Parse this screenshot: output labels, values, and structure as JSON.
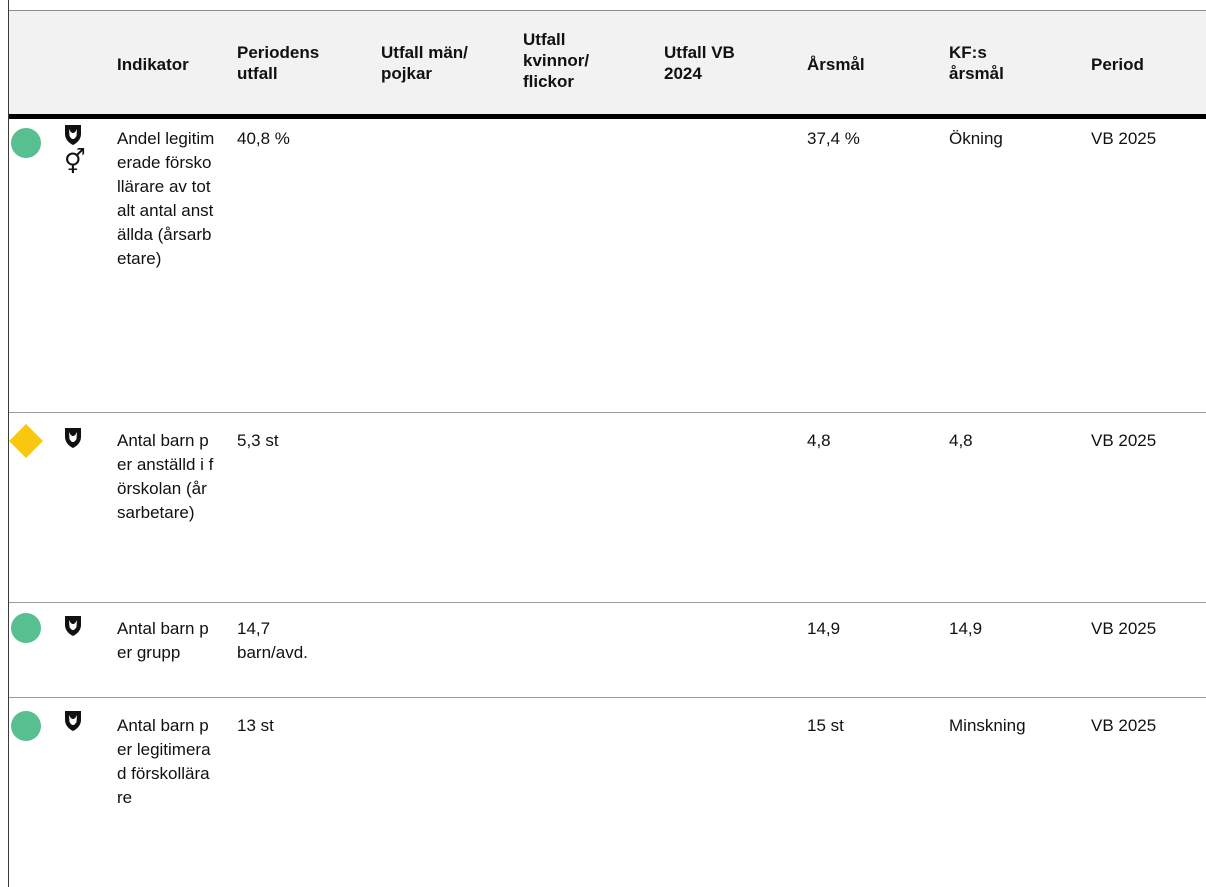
{
  "headers": {
    "indikator": "Indikator",
    "periodens_utfall": "Periodens utfall",
    "utfall_man": "Utfall män/ pojkar",
    "utfall_kvinnor": "Utfall kvinnor/ flickor",
    "utfall_vb": "Utfall VB 2024",
    "arsmal": "Årsmål",
    "kf_arsmal": "KF:s årsmål",
    "period": "Period"
  },
  "rows": [
    {
      "status": "green-circle",
      "status_color": "#58bf91",
      "icons": [
        "shield-icon",
        "gender-icon"
      ],
      "gender_symbol": "⚥",
      "indikator": "Andel legitimerade förskollärare av totalt antal anställda (årsarbetare)",
      "periodens_utfall": "40,8 %",
      "utfall_man": "",
      "utfall_kvinnor": "",
      "utfall_vb": "",
      "arsmal": "37,4 %",
      "kf_arsmal": "Ökning",
      "period": "VB 2025"
    },
    {
      "status": "yellow-diamond",
      "status_color": "#f9c80e",
      "icons": [
        "shield-icon"
      ],
      "indikator": "Antal barn per anställd i förskolan (årsarbetare)",
      "periodens_utfall": "5,3 st",
      "utfall_man": "",
      "utfall_kvinnor": "",
      "utfall_vb": "",
      "arsmal": "4,8",
      "kf_arsmal": "4,8",
      "period": "VB 2025"
    },
    {
      "status": "green-circle",
      "status_color": "#58bf91",
      "icons": [
        "shield-icon"
      ],
      "indikator": "Antal barn per grupp",
      "periodens_utfall": "14,7 barn/avd.",
      "utfall_man": "",
      "utfall_kvinnor": "",
      "utfall_vb": "",
      "arsmal": "14,9",
      "kf_arsmal": "14,9",
      "period": "VB 2025"
    },
    {
      "status": "green-circle",
      "status_color": "#58bf91",
      "icons": [
        "shield-icon"
      ],
      "indikator": "Antal barn per legitimerad förskollärare",
      "periodens_utfall": "13 st",
      "utfall_man": "",
      "utfall_kvinnor": "",
      "utfall_vb": "",
      "arsmal": "15 st",
      "kf_arsmal": "Minskning",
      "period": "VB 2025"
    }
  ]
}
